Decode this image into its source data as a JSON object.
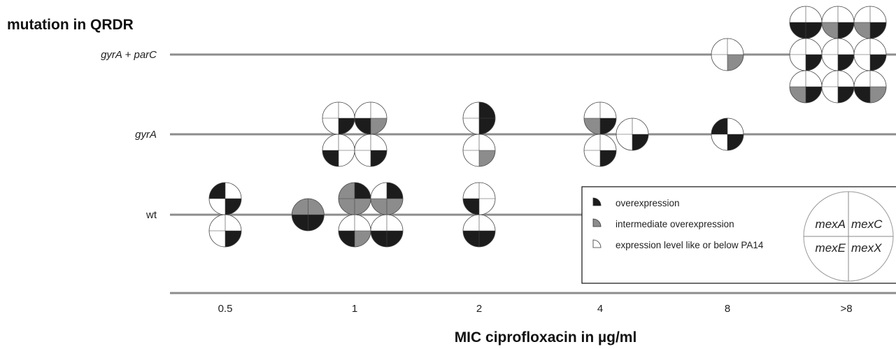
{
  "chart_data": {
    "type": "scatter",
    "ylabel": "mutation in QRDR",
    "xlabel": "MIC ciprofloxacin in µg/ml",
    "categories_x": [
      "0.5",
      "1",
      "2",
      "4",
      "8",
      ">8"
    ],
    "categories_y": [
      "wt",
      "gyrA",
      "gyrA + parC"
    ],
    "italic_y": [
      false,
      true,
      true
    ],
    "quadrant_order": [
      "mexA",
      "mexC",
      "mexE",
      "mexX"
    ],
    "level_codes": {
      "0": "expression level like or below PA14",
      "1": "intermediate overexpression",
      "2": "overexpression"
    },
    "colors": {
      "0": "#ffffff",
      "1": "#8c8c8c",
      "2": "#1c1c1c",
      "line": "#8c8c8c"
    },
    "isolates": [
      {
        "mic": "0.5",
        "mutation": "wt",
        "levels": [
          2,
          0,
          0,
          2
        ]
      },
      {
        "mic": "0.5",
        "mutation": "wt",
        "levels": [
          0,
          0,
          0,
          2
        ]
      },
      {
        "mic": "1",
        "mutation": "wt",
        "levels": [
          1,
          1,
          2,
          2
        ]
      },
      {
        "mic": "1",
        "mutation": "wt",
        "levels": [
          1,
          2,
          1,
          1
        ]
      },
      {
        "mic": "1",
        "mutation": "wt",
        "levels": [
          0,
          2,
          1,
          1
        ]
      },
      {
        "mic": "1",
        "mutation": "wt",
        "levels": [
          0,
          0,
          2,
          1
        ]
      },
      {
        "mic": "1",
        "mutation": "wt",
        "levels": [
          0,
          0,
          2,
          2
        ]
      },
      {
        "mic": "2",
        "mutation": "wt",
        "levels": [
          0,
          0,
          2,
          0
        ]
      },
      {
        "mic": "2",
        "mutation": "wt",
        "levels": [
          0,
          0,
          2,
          2
        ]
      },
      {
        "mic": "1",
        "mutation": "gyrA",
        "levels": [
          0,
          0,
          0,
          2
        ]
      },
      {
        "mic": "1",
        "mutation": "gyrA",
        "levels": [
          0,
          0,
          2,
          1
        ]
      },
      {
        "mic": "1",
        "mutation": "gyrA",
        "levels": [
          0,
          0,
          2,
          0
        ]
      },
      {
        "mic": "1",
        "mutation": "gyrA",
        "levels": [
          0,
          0,
          0,
          2
        ]
      },
      {
        "mic": "2",
        "mutation": "gyrA",
        "levels": [
          0,
          2,
          0,
          2
        ]
      },
      {
        "mic": "2",
        "mutation": "gyrA",
        "levels": [
          0,
          0,
          0,
          1
        ]
      },
      {
        "mic": "4",
        "mutation": "gyrA",
        "levels": [
          0,
          0,
          1,
          2
        ]
      },
      {
        "mic": "4",
        "mutation": "gyrA",
        "levels": [
          0,
          0,
          0,
          2
        ]
      },
      {
        "mic": "4",
        "mutation": "gyrA",
        "levels": [
          0,
          0,
          0,
          2
        ]
      },
      {
        "mic": "8",
        "mutation": "gyrA",
        "levels": [
          2,
          0,
          0,
          2
        ]
      },
      {
        "mic": "8",
        "mutation": "gyrA + parC",
        "levels": [
          0,
          0,
          0,
          1
        ]
      },
      {
        "mic": ">8",
        "mutation": "gyrA + parC",
        "levels": [
          0,
          0,
          2,
          2
        ]
      },
      {
        "mic": ">8",
        "mutation": "gyrA + parC",
        "levels": [
          0,
          0,
          1,
          2
        ]
      },
      {
        "mic": ">8",
        "mutation": "gyrA + parC",
        "levels": [
          0,
          0,
          1,
          2
        ]
      },
      {
        "mic": ">8",
        "mutation": "gyrA + parC",
        "levels": [
          0,
          0,
          0,
          2
        ]
      },
      {
        "mic": ">8",
        "mutation": "gyrA + parC",
        "levels": [
          0,
          0,
          0,
          2
        ]
      },
      {
        "mic": ">8",
        "mutation": "gyrA + parC",
        "levels": [
          0,
          0,
          0,
          2
        ]
      },
      {
        "mic": ">8",
        "mutation": "gyrA + parC",
        "levels": [
          0,
          0,
          1,
          2
        ]
      },
      {
        "mic": ">8",
        "mutation": "gyrA + parC",
        "levels": [
          0,
          0,
          0,
          2
        ]
      },
      {
        "mic": ">8",
        "mutation": "gyrA + parC",
        "levels": [
          0,
          0,
          2,
          1
        ]
      }
    ],
    "legend": {
      "items": [
        {
          "label": "overexpression",
          "level": 2
        },
        {
          "label": "intermediate overexpression",
          "level": 1
        },
        {
          "label": "expression level like or below PA14",
          "level": 0
        }
      ],
      "key": [
        "mexA",
        "mexC",
        "mexE",
        "mexX"
      ]
    }
  }
}
